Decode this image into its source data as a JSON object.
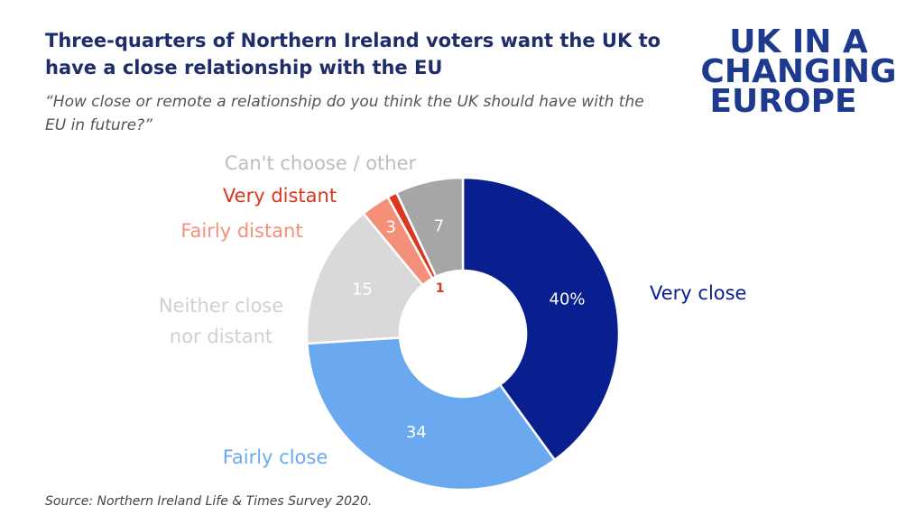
{
  "chart_data": {
    "type": "donut",
    "title": "Three-quarters of Northern Ireland voters want the UK to have a close relationship with the EU",
    "subtitle": "“How close or remote a relationship do you think the UK should have with the EU in future?”",
    "categories": [
      "Very close",
      "Fairly close",
      "Neither close nor distant",
      "Fairly distant",
      "Very distant",
      "Can't choose / other"
    ],
    "values": [
      40,
      34,
      15,
      3,
      1,
      7
    ],
    "value_labels": [
      "40%",
      "34",
      "15",
      "3",
      "1",
      "7"
    ],
    "colors": [
      "#0a1f8f",
      "#6aa9ef",
      "#d9d9d9",
      "#f4907a",
      "#d9381e",
      "#a6a6a6"
    ],
    "source": "Source: Northern Ireland Life & Times Survey 2020."
  },
  "logo": {
    "lines": [
      "UK IN A",
      "CHANGING",
      "EUROPE"
    ]
  }
}
